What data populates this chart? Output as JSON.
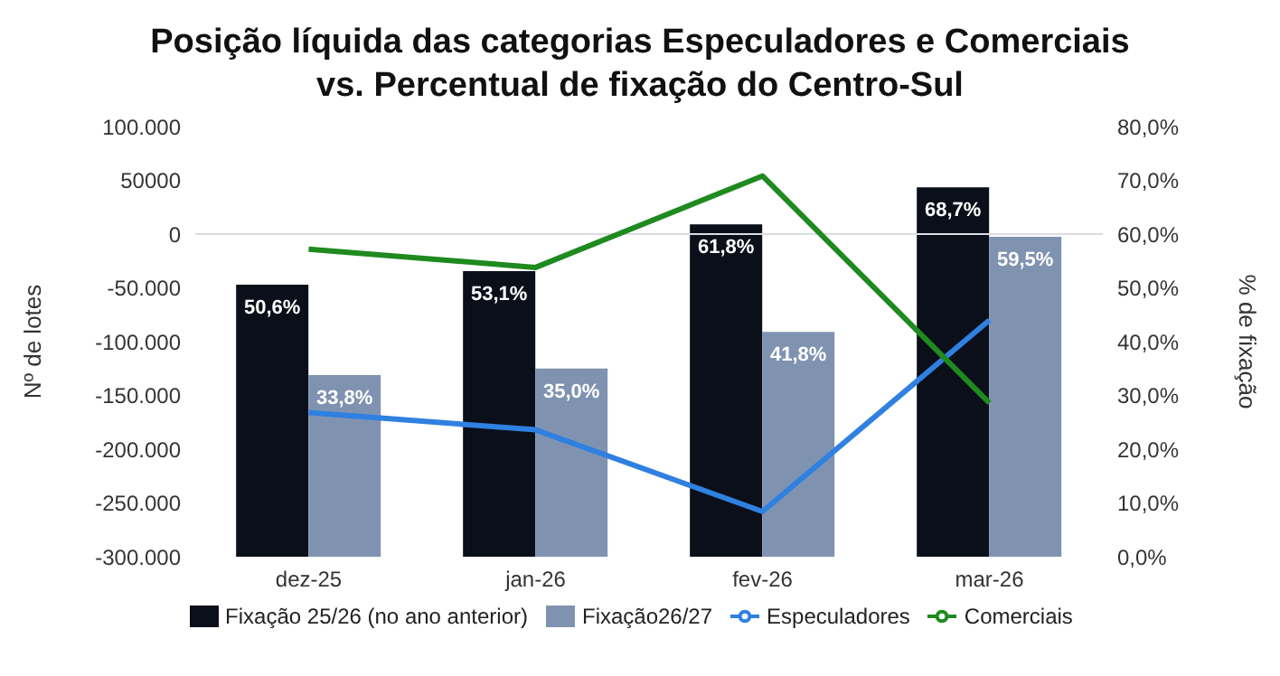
{
  "chart_data": {
    "type": "bar",
    "title": "Posição líquida das categorias Especuladores e Comerciais\nvs. Percentual de fixação do Centro-Sul",
    "ylabel": "Nº de lotes",
    "y2label": "% de fixação",
    "categories": [
      "dez-25",
      "jan-26",
      "fev-26",
      "mar-26"
    ],
    "series": [
      {
        "name": "Fixação 25/26 (no ano anterior)",
        "axis": "y2",
        "color": "#0b0f1a",
        "values": [
          50.6,
          53.1,
          61.8,
          68.7
        ],
        "value_labels": [
          "50,6%",
          "53,1%",
          "61,8%",
          "68,7%"
        ]
      },
      {
        "name": "Fixação26/27",
        "axis": "y2",
        "color": "#7f93b1",
        "values": [
          33.8,
          35.0,
          41.8,
          59.5
        ],
        "value_labels": [
          "33,8%",
          "35,0%",
          "41,8%",
          "59,5%"
        ]
      },
      {
        "name": "Especuladores",
        "type": "line",
        "color": "#2f80e0",
        "values": [
          -166000,
          -182000,
          -258000,
          -80000
        ]
      },
      {
        "name": "Comerciais",
        "type": "line",
        "color": "#1f8a1f",
        "values": [
          -14000,
          -31000,
          54000,
          -157000
        ]
      }
    ],
    "ylim": [
      -300000,
      100000
    ],
    "yticks": [
      {
        "value": -300000,
        "label": "-300.000"
      },
      {
        "value": -250000,
        "label": "-250.000"
      },
      {
        "value": -200000,
        "label": "-200.000"
      },
      {
        "value": -150000,
        "label": "-150.000"
      },
      {
        "value": -100000,
        "label": "-100.000"
      },
      {
        "value": -50000,
        "label": "-50.000"
      },
      0,
      {
        "value": 50000,
        "label": "50000"
      },
      {
        "value": 100000,
        "label": "100.000"
      }
    ],
    "y2lim": [
      0,
      80
    ],
    "y2ticks": [
      {
        "value": 0,
        "label": "0,0%"
      },
      {
        "value": 10,
        "label": "10,0%"
      },
      {
        "value": 20,
        "label": "20,0%"
      },
      {
        "value": 30,
        "label": "30,0%"
      },
      {
        "value": 40,
        "label": "40,0%"
      },
      {
        "value": 50,
        "label": "50,0%"
      },
      {
        "value": 60,
        "label": "60,0%"
      },
      {
        "value": 70,
        "label": "70,0%"
      },
      {
        "value": 80,
        "label": "80,0%"
      }
    ],
    "ref_lines": [
      {
        "axis": "y",
        "value": 0,
        "color": "#d9dde3"
      }
    ],
    "legend": "bottom",
    "marker": "none",
    "line_style": "solid"
  }
}
